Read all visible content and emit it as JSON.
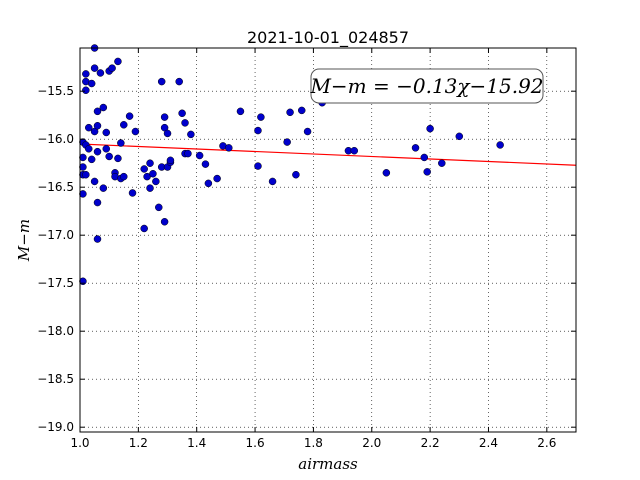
{
  "chart_data": {
    "type": "scatter",
    "title": "2021-10-01_024857",
    "xlabel": "airmass",
    "ylabel": "M−m",
    "xlim": [
      1.0,
      2.7
    ],
    "ylim": [
      -19.05,
      -15.05
    ],
    "y_inverted": true,
    "grid": true,
    "x_ticks": [
      1.0,
      1.2,
      1.4,
      1.6,
      1.8,
      2.0,
      2.2,
      2.4,
      2.6
    ],
    "x_tick_labels": [
      "1.0",
      "1.2",
      "1.4",
      "1.6",
      "1.8",
      "2.0",
      "2.2",
      "2.4",
      "2.6"
    ],
    "y_ticks": [
      -15.5,
      -16.0,
      -16.5,
      -17.0,
      -17.5,
      -18.0,
      -18.5,
      -19.0
    ],
    "y_tick_labels": [
      "−15.5",
      "−16.0",
      "−16.5",
      "−17.0",
      "−17.5",
      "−18.0",
      "−18.5",
      "−19.0"
    ],
    "annotation": "M−m = −0.13χ−15.92",
    "annotation_position": "top-right",
    "fit": {
      "slope": -0.13,
      "intercept": -15.92,
      "color": "#ff0000"
    },
    "points_color": "#0000cc",
    "x": [
      1.01,
      1.01,
      1.01,
      1.01,
      1.01,
      1.01,
      1.02,
      1.02,
      1.02,
      1.02,
      1.02,
      1.03,
      1.03,
      1.04,
      1.04,
      1.05,
      1.05,
      1.05,
      1.05,
      1.06,
      1.06,
      1.06,
      1.06,
      1.06,
      1.07,
      1.08,
      1.08,
      1.09,
      1.09,
      1.1,
      1.1,
      1.11,
      1.12,
      1.12,
      1.13,
      1.13,
      1.14,
      1.14,
      1.15,
      1.15,
      1.17,
      1.18,
      1.19,
      1.22,
      1.22,
      1.23,
      1.24,
      1.24,
      1.25,
      1.26,
      1.27,
      1.28,
      1.28,
      1.29,
      1.29,
      1.29,
      1.3,
      1.3,
      1.31,
      1.31,
      1.34,
      1.35,
      1.36,
      1.36,
      1.37,
      1.38,
      1.41,
      1.43,
      1.44,
      1.47,
      1.49,
      1.51,
      1.55,
      1.61,
      1.61,
      1.62,
      1.66,
      1.71,
      1.72,
      1.74,
      1.76,
      1.78,
      1.83,
      1.92,
      1.94,
      2.05,
      2.15,
      2.18,
      2.19,
      2.2,
      2.24,
      2.3,
      2.44
    ],
    "y": [
      -16.03,
      -16.19,
      -16.29,
      -16.37,
      -16.57,
      -17.48,
      -15.4,
      -15.49,
      -15.32,
      -16.06,
      -16.37,
      -15.88,
      -16.1,
      -15.42,
      -16.21,
      -15.92,
      -15.05,
      -15.26,
      -16.44,
      -16.66,
      -17.04,
      -15.71,
      -15.86,
      -16.13,
      -15.31,
      -15.67,
      -16.51,
      -16.1,
      -15.93,
      -16.18,
      -15.29,
      -15.26,
      -16.35,
      -16.39,
      -15.19,
      -16.2,
      -16.04,
      -16.41,
      -15.85,
      -16.39,
      -15.76,
      -16.56,
      -15.92,
      -16.31,
      -16.93,
      -16.39,
      -16.25,
      -16.51,
      -16.36,
      -16.44,
      -16.71,
      -16.29,
      -15.4,
      -15.77,
      -16.86,
      -15.88,
      -15.94,
      -16.29,
      -16.24,
      -16.22,
      -15.4,
      -15.73,
      -16.15,
      -15.83,
      -16.15,
      -15.95,
      -16.17,
      -16.26,
      -16.46,
      -16.41,
      -16.07,
      -16.09,
      -15.71,
      -16.28,
      -15.91,
      -15.77,
      -16.44,
      -16.03,
      -15.72,
      -16.37,
      -15.7,
      -15.92,
      -15.62,
      -16.12,
      -16.12,
      -16.35,
      -16.09,
      -16.19,
      -16.34,
      -15.89,
      -16.25,
      -15.97,
      -16.06
    ]
  }
}
